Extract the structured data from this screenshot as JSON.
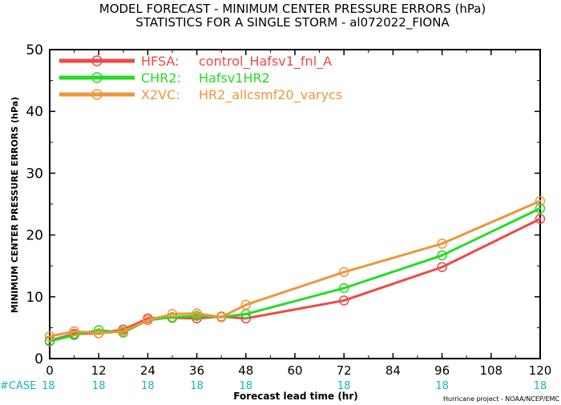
{
  "chart_data": {
    "type": "line",
    "title": "MODEL FORECAST - MINIMUM CENTER PRESSURE ERRORS (hPa)",
    "subtitle": "STATISTICS FOR A SINGLE STORM - al072022_FIONA",
    "xlabel": "Forecast lead time (hr)",
    "ylabel": "MINIMUM CENTER PRESSURE ERRORS (hPa)",
    "credit": "Hurricane project - NOAA/NCEP/EMC",
    "case_label": "#CASE",
    "xlim": [
      0,
      120
    ],
    "ylim": [
      0,
      50
    ],
    "x_ticks": [
      0,
      12,
      24,
      36,
      48,
      60,
      72,
      84,
      96,
      108,
      120
    ],
    "y_ticks": [
      0,
      10,
      20,
      30,
      40,
      50
    ],
    "grid": false,
    "legend_position": "top-left",
    "case_counts": [
      {
        "x": 0,
        "n": "18"
      },
      {
        "x": 12,
        "n": "18"
      },
      {
        "x": 24,
        "n": "18"
      },
      {
        "x": 36,
        "n": "18"
      },
      {
        "x": 48,
        "n": "18"
      },
      {
        "x": 72,
        "n": "18"
      },
      {
        "x": 96,
        "n": "18"
      },
      {
        "x": 120,
        "n": "18"
      }
    ],
    "series": [
      {
        "name": "HFSA:",
        "description": "control_Hafsv1_fnl_A",
        "color": "#f04848",
        "x": [
          0,
          6,
          12,
          18,
          24,
          30,
          36,
          42,
          48,
          72,
          96,
          120
        ],
        "values": [
          2.9,
          4.0,
          4.1,
          4.7,
          6.5,
          6.6,
          6.5,
          6.8,
          6.5,
          9.4,
          14.8,
          22.6
        ]
      },
      {
        "name": "CHR2:",
        "description": "Hafsv1HR2",
        "color": "#22dd22",
        "x": [
          0,
          6,
          12,
          18,
          24,
          30,
          36,
          42,
          48,
          72,
          96,
          120
        ],
        "values": [
          2.8,
          3.8,
          4.6,
          4.2,
          6.2,
          6.7,
          6.9,
          6.7,
          7.2,
          11.4,
          16.7,
          24.3
        ]
      },
      {
        "name": "X2VC:",
        "description": "HR2_allcsmf20_varycs",
        "color": "#f0953a",
        "x": [
          0,
          6,
          12,
          18,
          24,
          30,
          36,
          42,
          48,
          72,
          96,
          120
        ],
        "values": [
          3.6,
          4.4,
          4.1,
          4.4,
          6.2,
          7.2,
          7.3,
          6.7,
          8.7,
          14.0,
          18.6,
          25.5
        ]
      }
    ]
  }
}
